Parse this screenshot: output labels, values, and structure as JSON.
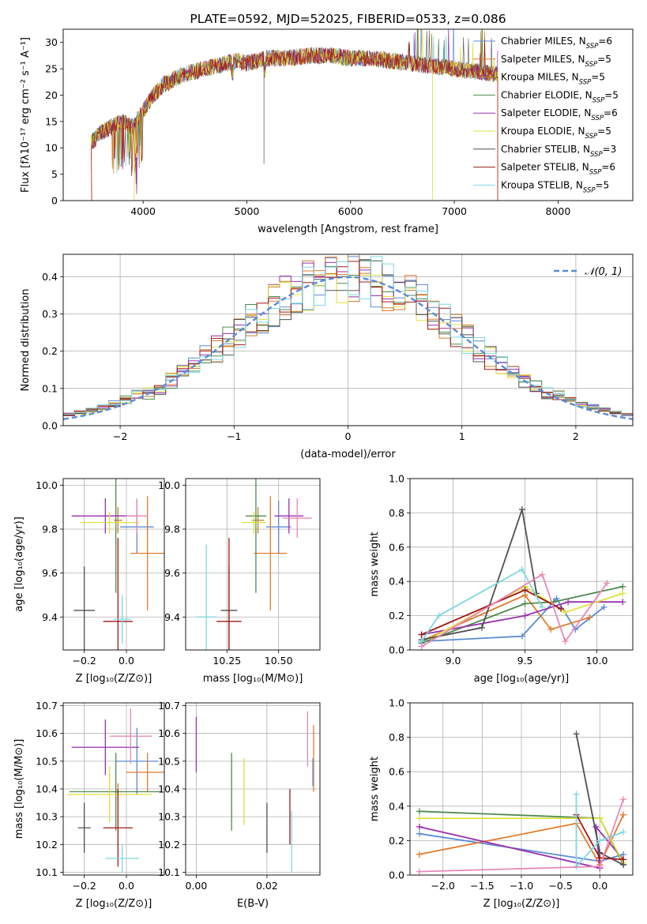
{
  "colors": [
    "#5b8bd5",
    "#e07b2a",
    "#c0802a",
    "#4f8a4f",
    "#9a30b0",
    "#e0e040",
    "#505050",
    "#a01818",
    "#7dd8e0"
  ],
  "extra_colors": [
    "#e888b8"
  ],
  "chart_data": [
    {
      "id": "spectrum",
      "type": "line",
      "title": "PLATE=0592, MJD=52025, FIBERID=0533, z=0.086",
      "xlabel": "wavelength [Angstrom, rest frame]",
      "ylabel": "Flux [fλ10⁻¹⁷ erg cm⁻² s⁻¹ A⁻¹]",
      "xlim": [
        3230,
        8720
      ],
      "ylim": [
        0,
        32.5
      ],
      "xticks": [
        "4000",
        "5000",
        "6000",
        "7000",
        "8000"
      ],
      "yticks": [
        "0",
        "5",
        "10",
        "15",
        "20",
        "25",
        "30"
      ],
      "legend_position": "right",
      "legend": [
        "Chabrier MILES, N_SSP=6",
        "Salpeter MILES, N_SSP=5",
        "Kroupa MILES, N_SSP=5",
        "Chabrier ELODIE, N_SSP=5",
        "Salpeter ELODIE, N_SSP=6",
        "Kroupa ELODIE, N_SSP=5",
        "Chabrier STELIB, N_SSP=3",
        "Salpeter STELIB, N_SSP=6",
        "Kroupa STELIB, N_SSP=5"
      ],
      "continuum": {
        "x": [
          3500,
          3600,
          3700,
          3800,
          3900,
          4000,
          4100,
          4200,
          4300,
          4400,
          4500,
          4600,
          4700,
          4800,
          4900,
          5000,
          5200,
          5400,
          5600,
          5800,
          6000,
          6200,
          6400,
          6600,
          6800,
          7000,
          7200,
          7400
        ],
        "y": [
          11,
          13,
          14,
          15,
          14,
          17,
          20,
          22,
          23,
          24,
          24.5,
          25,
          25.5,
          26,
          26.5,
          26,
          27,
          27,
          27.5,
          27.5,
          27,
          27,
          26.5,
          26,
          25.5,
          25,
          24.5,
          24
        ]
      },
      "grid": false
    },
    {
      "id": "residuals",
      "type": "histogram",
      "xlabel": "(data-model)/error",
      "ylabel": "Normed distribution",
      "xlim": [
        -2.5,
        2.5
      ],
      "ylim": [
        0,
        0.46
      ],
      "xticks": [
        "−2",
        "−1",
        "0",
        "1",
        "2"
      ],
      "yticks": [
        "0.0",
        "0.1",
        "0.2",
        "0.3",
        "0.4"
      ],
      "bin_width": 0.1,
      "legend_position": "upper right",
      "gaussian_label": "𝒩(0, 1)",
      "grid": true
    },
    {
      "id": "age-vs-Z",
      "type": "errorbar",
      "xlabel": "Z [log₁₀(Z/Z⊙)]",
      "ylabel": "age  [log₁₀(age/yr)]",
      "xlim": [
        -0.3,
        0.18
      ],
      "ylim": [
        9.25,
        10.03
      ],
      "xticks": [
        "−0.2",
        "0.0"
      ],
      "yticks": [
        "9.4",
        "9.6",
        "9.8",
        "10.0"
      ],
      "points": [
        {
          "x": 0.05,
          "y": 9.81,
          "xe": 0.08,
          "ye": 0.12,
          "c": "#5b8bd5"
        },
        {
          "x": 0.1,
          "y": 9.69,
          "xe": 0.08,
          "ye": 0.26,
          "c": "#e07b2a"
        },
        {
          "x": -0.04,
          "y": 9.84,
          "xe": 0.02,
          "ye": 0.06,
          "c": "#c0802a"
        },
        {
          "x": -0.05,
          "y": 9.86,
          "xe": 0.04,
          "ye": 0.35,
          "c": "#4f8a4f"
        },
        {
          "x": -0.1,
          "y": 9.86,
          "xe": 0.16,
          "ye": 0.08,
          "c": "#9a30b0"
        },
        {
          "x": -0.08,
          "y": 9.83,
          "xe": 0.14,
          "ye": 0.05,
          "c": "#e0e040"
        },
        {
          "x": -0.2,
          "y": 9.43,
          "xe": 0.05,
          "ye": 0.2,
          "c": "#505050"
        },
        {
          "x": -0.04,
          "y": 9.38,
          "xe": 0.07,
          "ye": 0.38,
          "c": "#a01818"
        },
        {
          "x": -0.02,
          "y": 9.39,
          "xe": 0.04,
          "ye": 0.11,
          "c": "#7dd8e0"
        },
        {
          "x": 0.05,
          "y": 9.86,
          "xe": 0.05,
          "ye": 0.08,
          "c": "#e888b8"
        }
      ]
    },
    {
      "id": "age-vs-mass",
      "type": "errorbar",
      "xlabel": "mass [log₁₀(M/M⊙)]",
      "ylabel": "",
      "xlim": [
        10.05,
        10.7
      ],
      "ylim": [
        9.25,
        10.03
      ],
      "xticks": [
        "10.25",
        "10.50"
      ],
      "yticks": [
        "9.4",
        "9.6",
        "9.8",
        "10.0"
      ],
      "points": [
        {
          "x": 10.5,
          "y": 9.81,
          "xe": 0.06,
          "ye": 0.12,
          "c": "#5b8bd5"
        },
        {
          "x": 10.46,
          "y": 9.69,
          "xe": 0.08,
          "ye": 0.26,
          "c": "#e07b2a"
        },
        {
          "x": 10.4,
          "y": 9.84,
          "xe": 0.03,
          "ye": 0.06,
          "c": "#c0802a"
        },
        {
          "x": 10.39,
          "y": 9.86,
          "xe": 0.05,
          "ye": 0.35,
          "c": "#4f8a4f"
        },
        {
          "x": 10.55,
          "y": 9.86,
          "xe": 0.07,
          "ye": 0.08,
          "c": "#9a30b0"
        },
        {
          "x": 10.38,
          "y": 9.83,
          "xe": 0.06,
          "ye": 0.05,
          "c": "#e0e040"
        },
        {
          "x": 10.26,
          "y": 9.43,
          "xe": 0.04,
          "ye": 0.2,
          "c": "#505050"
        },
        {
          "x": 10.26,
          "y": 9.38,
          "xe": 0.06,
          "ye": 0.38,
          "c": "#a01818"
        },
        {
          "x": 10.15,
          "y": 9.4,
          "xe": 0.05,
          "ye": 0.33,
          "c": "#7dd8e0"
        },
        {
          "x": 10.59,
          "y": 9.85,
          "xe": 0.07,
          "ye": 0.09,
          "c": "#e888b8"
        }
      ]
    },
    {
      "id": "mass-weight-vs-age",
      "type": "line",
      "xlabel": "age  [log₁₀(age/yr)]",
      "ylabel": "mass weight",
      "xlim": [
        8.7,
        10.25
      ],
      "ylim": [
        0,
        1.0
      ],
      "xticks": [
        "9.0",
        "9.5",
        "10.0"
      ],
      "yticks": [
        "0.0",
        "0.2",
        "0.4",
        "0.6",
        "0.8",
        "1.0"
      ],
      "grid": true,
      "series": [
        {
          "c": "#5b8bd5",
          "x": [
            8.78,
            9.48,
            9.72,
            9.85,
            10.05
          ],
          "y": [
            0.05,
            0.08,
            0.3,
            0.12,
            0.25
          ]
        },
        {
          "c": "#e07b2a",
          "x": [
            8.8,
            9.5,
            9.68,
            9.95
          ],
          "y": [
            0.06,
            0.32,
            0.12,
            0.19
          ]
        },
        {
          "c": "#4f8a4f",
          "x": [
            8.78,
            9.5,
            9.7,
            10.18
          ],
          "y": [
            0.04,
            0.27,
            0.28,
            0.37
          ]
        },
        {
          "c": "#9a30b0",
          "x": [
            8.78,
            9.5,
            9.8,
            10.18
          ],
          "y": [
            0.09,
            0.2,
            0.28,
            0.28
          ]
        },
        {
          "c": "#e0e040",
          "x": [
            8.85,
            9.5,
            9.78,
            10.18
          ],
          "y": [
            0.07,
            0.37,
            0.22,
            0.33
          ]
        },
        {
          "c": "#505050",
          "x": [
            8.78,
            9.2,
            9.48,
            9.58
          ],
          "y": [
            0.06,
            0.13,
            0.82,
            0.33
          ]
        },
        {
          "c": "#a01818",
          "x": [
            8.78,
            9.5,
            9.75
          ],
          "y": [
            0.09,
            0.35,
            0.24
          ]
        },
        {
          "c": "#7dd8e0",
          "x": [
            8.78,
            8.9,
            9.48,
            9.62
          ],
          "y": [
            0.05,
            0.2,
            0.47,
            0.25
          ]
        },
        {
          "c": "#e888b8",
          "x": [
            8.78,
            9.62,
            9.78,
            10.07
          ],
          "y": [
            0.02,
            0.44,
            0.05,
            0.39
          ]
        }
      ]
    },
    {
      "id": "mass-vs-Z",
      "type": "errorbar",
      "xlabel": "Z [log₁₀(Z/Z⊙)]",
      "ylabel": "mass [log₁₀(M/M⊙)]",
      "xlim": [
        -0.3,
        0.18
      ],
      "ylim": [
        10.09,
        10.71
      ],
      "xticks": [
        "−0.2",
        "0.0"
      ],
      "yticks": [
        "10.1",
        "10.2",
        "10.3",
        "10.4",
        "10.5",
        "10.6",
        "10.7"
      ],
      "points": [
        {
          "x": 0.05,
          "y": 10.5,
          "xe": 0.1,
          "ye": 0.12,
          "c": "#5b8bd5"
        },
        {
          "x": 0.1,
          "y": 10.46,
          "xe": 0.1,
          "ye": 0.07,
          "c": "#e07b2a"
        },
        {
          "x": -0.04,
          "y": 10.39,
          "xe": 0.02,
          "ye": 0.03,
          "c": "#c0802a"
        },
        {
          "x": -0.05,
          "y": 10.39,
          "xe": 0.22,
          "ye": 0.14,
          "c": "#4f8a4f"
        },
        {
          "x": -0.1,
          "y": 10.55,
          "xe": 0.16,
          "ye": 0.1,
          "c": "#9a30b0"
        },
        {
          "x": -0.08,
          "y": 10.38,
          "xe": 0.2,
          "ye": 0.1,
          "c": "#e0e040"
        },
        {
          "x": -0.2,
          "y": 10.26,
          "xe": 0.03,
          "ye": 0.09,
          "c": "#505050"
        },
        {
          "x": -0.04,
          "y": 10.26,
          "xe": 0.07,
          "ye": 0.14,
          "c": "#a01818"
        },
        {
          "x": -0.02,
          "y": 10.15,
          "xe": 0.08,
          "ye": 0.05,
          "c": "#7dd8e0"
        },
        {
          "x": 0.02,
          "y": 10.59,
          "xe": 0.1,
          "ye": 0.1,
          "c": "#e888b8"
        }
      ]
    },
    {
      "id": "mass-vs-EBV",
      "type": "errorbar",
      "xlabel": "E(B-V)",
      "ylabel": "",
      "xlim": [
        -0.003,
        0.035
      ],
      "ylim": [
        10.09,
        10.71
      ],
      "xticks": [
        "0.00",
        "0.02"
      ],
      "yticks": [
        "10.1",
        "10.2",
        "10.3",
        "10.4",
        "10.5",
        "10.6",
        "10.7"
      ],
      "points": [
        {
          "x": 0.0,
          "y": 10.56,
          "ye": 0.1,
          "c": "#9a30b0"
        },
        {
          "x": 0.01,
          "y": 10.39,
          "ye": 0.14,
          "c": "#4f8a4f"
        },
        {
          "x": 0.0135,
          "y": 10.39,
          "ye": 0.12,
          "c": "#e0e040"
        },
        {
          "x": 0.02,
          "y": 10.26,
          "ye": 0.09,
          "c": "#505050"
        },
        {
          "x": 0.0265,
          "y": 10.3,
          "ye": 0.1,
          "c": "#a01818"
        },
        {
          "x": 0.027,
          "y": 10.21,
          "ye": 0.11,
          "c": "#7dd8e0"
        },
        {
          "x": 0.0315,
          "y": 10.58,
          "ye": 0.1,
          "c": "#e888b8"
        },
        {
          "x": 0.0332,
          "y": 10.51,
          "ye": 0.12,
          "c": "#e07b2a"
        },
        {
          "x": 0.033,
          "y": 10.46,
          "ye": 0.05,
          "c": "#5b8bd5"
        }
      ]
    },
    {
      "id": "mass-weight-vs-Z",
      "type": "line",
      "xlabel": "Z [log₁₀(Z/Z⊙)]",
      "ylabel": "mass weight",
      "xlim": [
        -2.42,
        0.42
      ],
      "ylim": [
        0,
        1.0
      ],
      "xticks": [
        "−2.0",
        "−1.5",
        "−1.0",
        "−0.5",
        "0.0"
      ],
      "yticks": [
        "0.0",
        "0.2",
        "0.4",
        "0.6",
        "0.8",
        "1.0"
      ],
      "grid": true,
      "series": [
        {
          "c": "#5b8bd5",
          "x": [
            -2.3,
            0.0,
            0.3
          ],
          "y": [
            0.24,
            0.08,
            0.12
          ]
        },
        {
          "c": "#e07b2a",
          "x": [
            -2.3,
            -0.3,
            0.0,
            0.3
          ],
          "y": [
            0.12,
            0.3,
            0.06,
            0.35
          ]
        },
        {
          "c": "#4f8a4f",
          "x": [
            -2.3,
            0.0,
            0.3
          ],
          "y": [
            0.37,
            0.33,
            0.06
          ]
        },
        {
          "c": "#9a30b0",
          "x": [
            -2.3,
            0.0,
            -0.05,
            0.3
          ],
          "y": [
            0.28,
            0.04,
            0.28,
            0.09
          ]
        },
        {
          "c": "#e0e040",
          "x": [
            -2.3,
            0.0,
            0.3
          ],
          "y": [
            0.33,
            0.33,
            0.07
          ]
        },
        {
          "c": "#505050",
          "x": [
            -0.3,
            0.0,
            0.3
          ],
          "y": [
            0.82,
            0.13,
            0.06
          ]
        },
        {
          "c": "#a01818",
          "x": [
            -0.3,
            0.0,
            0.3
          ],
          "y": [
            0.35,
            0.1,
            0.09
          ]
        },
        {
          "c": "#7dd8e0",
          "x": [
            -0.3,
            -0.3,
            0.0,
            0.3
          ],
          "y": [
            0.47,
            0.05,
            0.2,
            0.25
          ]
        },
        {
          "c": "#e888b8",
          "x": [
            -2.3,
            0.0,
            0.3
          ],
          "y": [
            0.02,
            0.05,
            0.44
          ]
        }
      ]
    }
  ]
}
